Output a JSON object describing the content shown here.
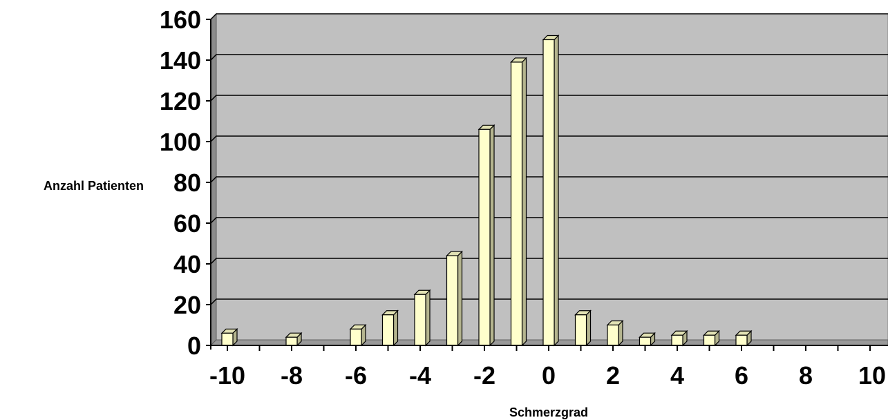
{
  "chart_data": {
    "type": "bar",
    "title": "",
    "xlabel": "Schmerzgrad",
    "ylabel": "Anzahl Patienten",
    "x": [
      -10,
      -8,
      -6,
      -5,
      -4,
      -3,
      -2,
      -1,
      0,
      1,
      2,
      3,
      4,
      5,
      6
    ],
    "values": [
      6,
      4,
      8,
      15,
      25,
      44,
      106,
      139,
      150,
      15,
      10,
      4,
      5,
      5,
      5
    ],
    "xlim": [
      -10.5,
      10
    ],
    "ylim": [
      0,
      160
    ],
    "yticks": [
      0,
      20,
      40,
      60,
      80,
      100,
      120,
      140,
      160
    ],
    "xtick_labels": [
      -10,
      -8,
      -6,
      -4,
      -2,
      0,
      2,
      4,
      6,
      8,
      10
    ],
    "grid": true,
    "colors": {
      "plot_background": "#c0c0c0",
      "bar_face": "#ffffcc",
      "bar_side": "#b5b58f",
      "bar_top": "#e2e2b4",
      "gridline": "#000000"
    }
  }
}
